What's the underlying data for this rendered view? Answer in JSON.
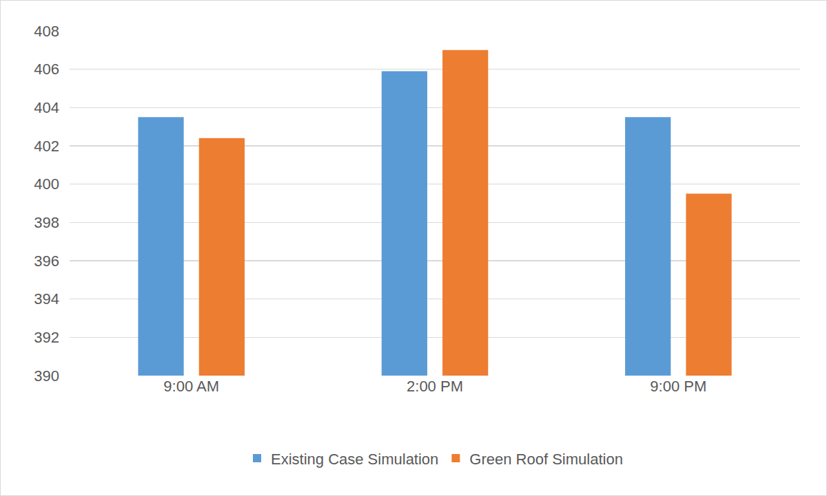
{
  "chart_data": {
    "type": "bar",
    "categories": [
      "9:00 AM",
      "2:00 PM",
      "9:00 PM"
    ],
    "series": [
      {
        "name": "Existing Case Simulation",
        "color": "#5b9bd5",
        "values": [
          403.5,
          405.9,
          403.5
        ]
      },
      {
        "name": "Green Roof Simulation",
        "color": "#ed7d31",
        "values": [
          402.4,
          407.0,
          399.5
        ]
      }
    ],
    "ylim": [
      390,
      408
    ],
    "yticks": [
      390,
      392,
      394,
      396,
      398,
      400,
      402,
      404,
      406,
      408
    ],
    "grid": true,
    "legend": "bottom"
  }
}
